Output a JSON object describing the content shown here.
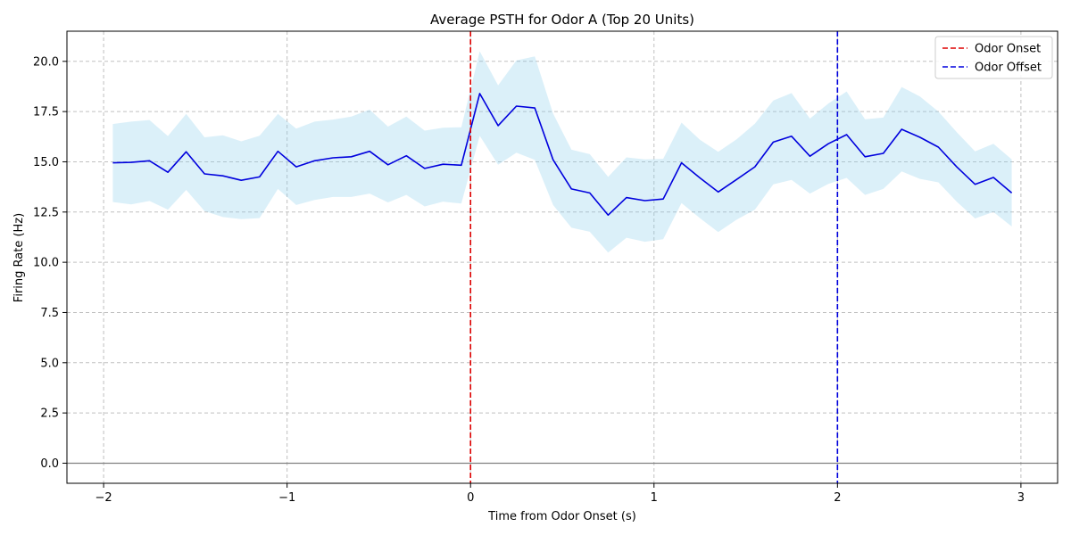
{
  "chart_data": {
    "type": "line",
    "title": "Average PSTH for Odor A (Top 20 Units)",
    "xlabel": "Time from Odor Onset (s)",
    "ylabel": "Firing Rate (Hz)",
    "xlim": [
      -2.2,
      3.2
    ],
    "ylim": [
      -1.0,
      21.5
    ],
    "xticks": [
      -2,
      -1,
      0,
      1,
      2,
      3
    ],
    "xtick_labels": [
      "−2",
      "−1",
      "0",
      "1",
      "2",
      "3"
    ],
    "yticks": [
      0,
      2.5,
      5,
      7.5,
      10,
      12.5,
      15,
      17.5,
      20
    ],
    "ytick_labels": [
      "0.0",
      "2.5",
      "5.0",
      "7.5",
      "10.0",
      "12.5",
      "15.0",
      "17.5",
      "20.0"
    ],
    "grid": true,
    "legend_position": "top-right",
    "colors": {
      "mean": "#0000dd",
      "band": "#87ceeb",
      "onset": "#dd0000",
      "offset": "#0000dd",
      "zero_line": "#808080",
      "grid": "#c0c0c0"
    },
    "x": [
      -1.95,
      -1.85,
      -1.75,
      -1.65,
      -1.55,
      -1.45,
      -1.35,
      -1.25,
      -1.15,
      -1.05,
      -0.95,
      -0.85,
      -0.75,
      -0.65,
      -0.55,
      -0.45,
      -0.35,
      -0.25,
      -0.15,
      -0.05,
      0.05,
      0.15,
      0.25,
      0.35,
      0.45,
      0.55,
      0.65,
      0.75,
      0.85,
      0.95,
      1.05,
      1.15,
      1.25,
      1.35,
      1.45,
      1.55,
      1.65,
      1.75,
      1.85,
      1.95,
      2.05,
      2.15,
      2.25,
      2.35,
      2.45,
      2.55,
      2.65,
      2.75,
      2.85,
      2.95
    ],
    "series": [
      {
        "name": "",
        "mean": [
          14.95,
          14.97,
          15.05,
          14.48,
          15.5,
          14.4,
          14.3,
          14.08,
          14.25,
          15.52,
          14.75,
          15.05,
          15.2,
          15.25,
          15.52,
          14.85,
          15.3,
          14.67,
          14.88,
          14.83,
          18.4,
          16.8,
          17.77,
          17.68,
          15.1,
          13.65,
          13.45,
          12.35,
          13.22,
          13.07,
          13.15,
          14.95,
          14.2,
          13.5,
          14.12,
          14.75,
          15.98,
          16.27,
          15.28,
          15.9,
          16.35,
          15.25,
          15.42,
          16.62,
          16.22,
          15.73,
          14.75,
          13.88,
          14.22,
          13.45
        ],
        "upper": [
          16.88,
          17.0,
          17.08,
          16.28,
          17.38,
          16.22,
          16.32,
          16.02,
          16.3,
          17.38,
          16.65,
          17.0,
          17.1,
          17.25,
          17.6,
          16.75,
          17.25,
          16.55,
          16.7,
          16.72,
          20.5,
          18.8,
          20.05,
          20.25,
          17.4,
          15.6,
          15.38,
          14.25,
          15.22,
          15.12,
          15.15,
          16.95,
          16.1,
          15.5,
          16.12,
          16.9,
          18.05,
          18.42,
          17.15,
          17.9,
          18.5,
          17.12,
          17.2,
          18.72,
          18.25,
          17.5,
          16.48,
          15.52,
          15.9,
          15.12
        ],
        "lower": [
          13.0,
          12.88,
          13.05,
          12.62,
          13.6,
          12.55,
          12.25,
          12.15,
          12.2,
          13.65,
          12.85,
          13.1,
          13.25,
          13.25,
          13.42,
          12.98,
          13.35,
          12.78,
          13.02,
          12.92,
          16.3,
          14.85,
          15.45,
          15.1,
          12.85,
          11.72,
          11.52,
          10.48,
          11.22,
          11.02,
          11.15,
          12.95,
          12.2,
          11.5,
          12.12,
          12.62,
          13.88,
          14.1,
          13.42,
          13.9,
          14.2,
          13.35,
          13.65,
          14.52,
          14.15,
          13.98,
          13.02,
          12.18,
          12.5,
          11.78
        ]
      }
    ],
    "vlines": [
      {
        "name": "Odor Onset",
        "x": 0,
        "style": "dashed",
        "color": "#dd0000"
      },
      {
        "name": "Odor Offset",
        "x": 2,
        "style": "dashed",
        "color": "#0000dd"
      }
    ],
    "hlines": [
      {
        "y": 0,
        "color": "#808080"
      }
    ],
    "legend": [
      {
        "label": "Odor Onset",
        "color": "#dd0000",
        "style": "dashed"
      },
      {
        "label": "Odor Offset",
        "color": "#0000dd",
        "style": "dashed"
      }
    ]
  }
}
